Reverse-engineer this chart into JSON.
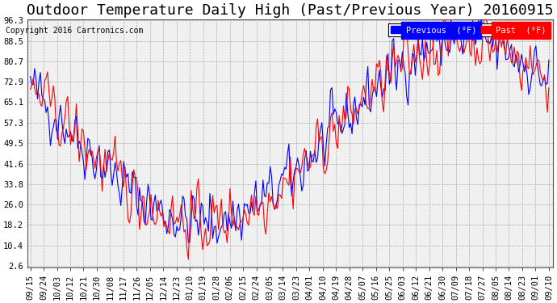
{
  "title": "Outdoor Temperature Daily High (Past/Previous Year) 20160915",
  "copyright": "Copyright 2016 Cartronics.com",
  "ylabel_ticks": [
    2.6,
    10.4,
    18.2,
    26.0,
    33.8,
    41.6,
    49.5,
    57.3,
    65.1,
    72.9,
    80.7,
    88.5,
    96.3
  ],
  "x_tick_labels": [
    "09/15",
    "09/24",
    "10/03",
    "10/12",
    "10/21",
    "10/30",
    "11/08",
    "11/17",
    "11/26",
    "12/05",
    "12/14",
    "12/23",
    "01/10",
    "01/19",
    "01/28",
    "02/06",
    "02/15",
    "02/24",
    "03/05",
    "03/14",
    "03/23",
    "04/01",
    "04/10",
    "04/19",
    "04/28",
    "05/07",
    "05/16",
    "05/25",
    "06/03",
    "06/12",
    "06/21",
    "06/30",
    "07/09",
    "07/18",
    "07/27",
    "08/05",
    "08/14",
    "08/23",
    "09/01",
    "09/10"
  ],
  "legend_labels": [
    "Previous  (°F)",
    "Past  (°F)"
  ],
  "legend_colors": [
    "blue",
    "red"
  ],
  "legend_bg_colors": [
    "blue",
    "red"
  ],
  "bg_color": "#f0f0f0",
  "grid_color": "#aaaaaa",
  "title_fontsize": 13,
  "axis_fontsize": 7.5,
  "ylim": [
    2.6,
    96.3
  ],
  "num_points": 362
}
